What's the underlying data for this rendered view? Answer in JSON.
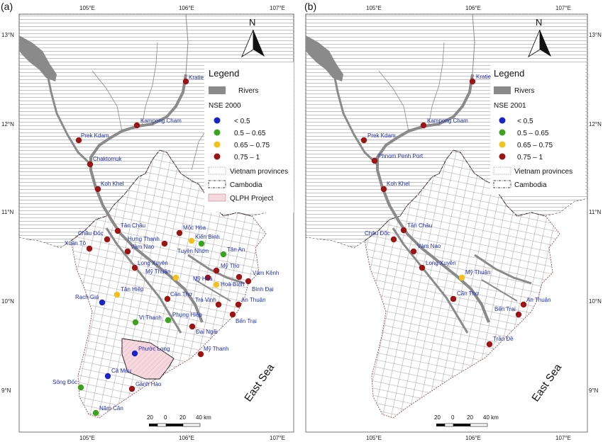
{
  "colors": {
    "lt05": "#1a22c8",
    "c0565": "#3aa51c",
    "c06575": "#f3c01c",
    "c0751": "#9c1414",
    "river": "#8a8a8a",
    "cambodia_hatch": "#9a9a9a",
    "project_fill": "#f6d8df",
    "coast": "#9b4a4a"
  },
  "common": {
    "lon_labels": [
      "105°E",
      "106°E",
      "107°E"
    ],
    "lat_labels": [
      "13°N",
      "12°N",
      "11°N",
      "10°N",
      "9°N"
    ],
    "north_label": "N",
    "sea_label": "East Sea",
    "scale_ticks": [
      "20",
      "0",
      "20",
      "40 km"
    ]
  },
  "panels": [
    {
      "label": "(a)",
      "legend": {
        "title": "Legend",
        "rivers": "Rivers",
        "nse_title": "NSE 2000",
        "classes": [
          "< 0.5",
          "0.5 – 0.65",
          "0.65 – 0.75",
          "0.75 – 1"
        ],
        "provinces": "Vietnam provinces",
        "cambodia": "Cambodia",
        "project": "QLPH Project"
      },
      "stations": [
        {
          "name": "Kratie",
          "cls": "c0751"
        },
        {
          "name": "Kampong Cham",
          "cls": "c0751"
        },
        {
          "name": "Prek Kdam",
          "cls": "c0751"
        },
        {
          "name": "Chaktomuk",
          "cls": "c0751"
        },
        {
          "name": "Koh Khel",
          "cls": "c0751"
        },
        {
          "name": "Tân Châu",
          "cls": "c0751"
        },
        {
          "name": "Châu Đốc",
          "cls": "c0751"
        },
        {
          "name": "Xuân Tô",
          "cls": "c0751"
        },
        {
          "name": "Hưng Thạnh",
          "cls": "c0751"
        },
        {
          "name": "Vàm Nao",
          "cls": "c0751"
        },
        {
          "name": "Mộc Hóa",
          "cls": "c0751"
        },
        {
          "name": "Kiến Bình",
          "cls": "c0565"
        },
        {
          "name": "Tuyên Nhơn",
          "cls": "c06575"
        },
        {
          "name": "Tân An",
          "cls": "c0565"
        },
        {
          "name": "Long Xuyên",
          "cls": "c0751"
        },
        {
          "name": "Mỹ Thuận",
          "cls": "c06575"
        },
        {
          "name": "Mỹ Hoá",
          "cls": "c0751"
        },
        {
          "name": "Mỹ Tho",
          "cls": "c0751"
        },
        {
          "name": "Vàm Kênh",
          "cls": "c0751"
        },
        {
          "name": "Hoà Bình",
          "cls": "c06575"
        },
        {
          "name": "Bình Đại",
          "cls": "c0751"
        },
        {
          "name": "Tân Hiệp",
          "cls": "c06575"
        },
        {
          "name": "Rạch Giá",
          "cls": "lt05"
        },
        {
          "name": "Cần Thơ",
          "cls": "c0751"
        },
        {
          "name": "Trà Vinh",
          "cls": "c0751"
        },
        {
          "name": "An Thuận",
          "cls": "c0751"
        },
        {
          "name": "Bến Trại",
          "cls": "c0751"
        },
        {
          "name": "Vị Thanh",
          "cls": "c0565"
        },
        {
          "name": "Phụng Hiệp",
          "cls": "c0565"
        },
        {
          "name": "Đại Ngãi",
          "cls": "c0751"
        },
        {
          "name": "Mỹ Thanh",
          "cls": "c0751"
        },
        {
          "name": "Phước Long",
          "cls": "lt05"
        },
        {
          "name": "Cà Mau",
          "cls": "lt05"
        },
        {
          "name": "Gành Hào",
          "cls": "c0751"
        },
        {
          "name": "Sông Đốc",
          "cls": "c0565"
        },
        {
          "name": "Năm Căn",
          "cls": "c0565"
        }
      ]
    },
    {
      "label": "(b)",
      "legend": {
        "title": "Legend",
        "rivers": "Rivers",
        "nse_title": "NSE 2001",
        "classes": [
          "< 0.5",
          "0.5 – 0.65",
          "0.65 – 0.75",
          "0.75 – 1"
        ],
        "provinces": "Vietnam provinces",
        "cambodia": "Cambodia"
      },
      "stations": [
        {
          "name": "Kratie",
          "cls": "c0751"
        },
        {
          "name": "Kampong Cham",
          "cls": "c0751"
        },
        {
          "name": "Prek Kdam",
          "cls": "c0751"
        },
        {
          "name": "Phnom Penh Port",
          "cls": "c0751"
        },
        {
          "name": "Koh Khel",
          "cls": "c0751"
        },
        {
          "name": "Tân Châu",
          "cls": "c0751"
        },
        {
          "name": "Châu Đốc",
          "cls": "c0751"
        },
        {
          "name": "Vàm Nao",
          "cls": "c0751"
        },
        {
          "name": "Long Xuyên",
          "cls": "c0751"
        },
        {
          "name": "Mỹ Thuận",
          "cls": "c06575"
        },
        {
          "name": "Cần Thơ",
          "cls": "c0751"
        },
        {
          "name": "Bến Trại",
          "cls": "c0751"
        },
        {
          "name": "An Thuận",
          "cls": "c0751"
        },
        {
          "name": "Trần Đề",
          "cls": "c0751"
        }
      ]
    }
  ]
}
